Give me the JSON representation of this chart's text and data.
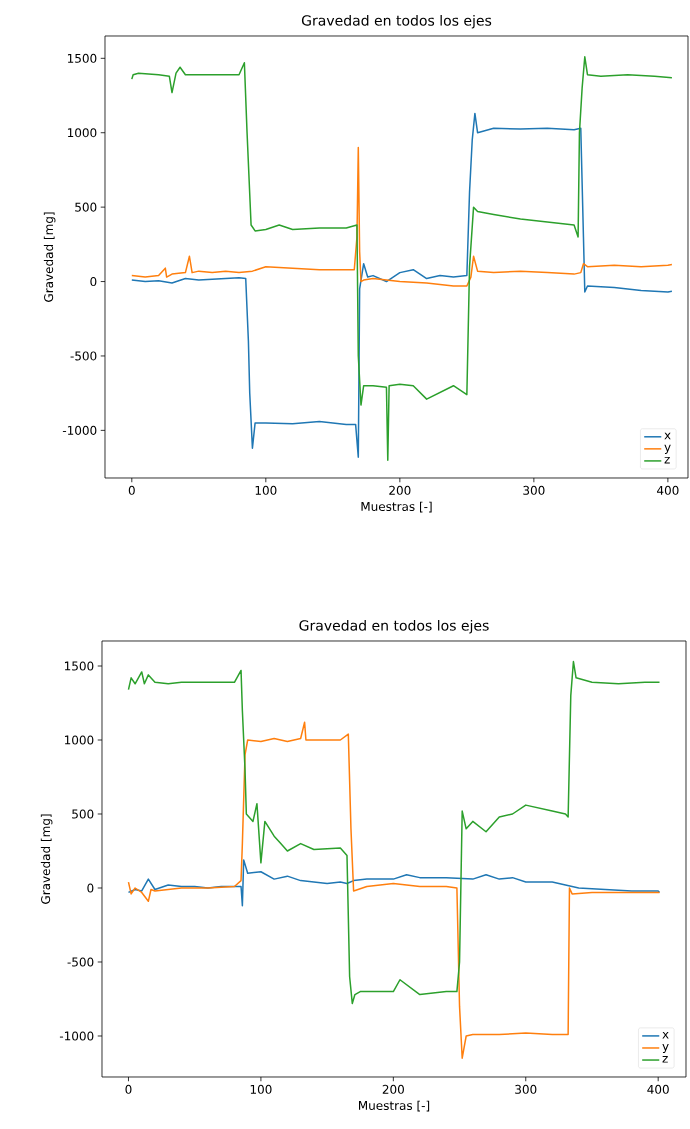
{
  "chart_data": [
    {
      "type": "line",
      "title": "Gravedad en todos los ejes",
      "xlabel": "Muestras [-]",
      "ylabel": "Gravedad [mg]",
      "xlim": [
        -20,
        415
      ],
      "ylim": [
        -1320,
        1650
      ],
      "xticks": [
        0,
        100,
        200,
        300,
        400
      ],
      "yticks": [
        -1000,
        -500,
        0,
        500,
        1000,
        1500
      ],
      "legend": "bottom right",
      "marker": "none",
      "line_style": "solid",
      "series": [
        {
          "name": "x",
          "color": "#1f77b4",
          "x": [
            0,
            10,
            20,
            30,
            40,
            50,
            60,
            70,
            80,
            85,
            87,
            88,
            90,
            92,
            100,
            120,
            140,
            160,
            167,
            169,
            170,
            173,
            176,
            180,
            190,
            200,
            210,
            220,
            230,
            240,
            250,
            252,
            254,
            256,
            258,
            270,
            290,
            310,
            330,
            335,
            337,
            338,
            340,
            360,
            380,
            400,
            403
          ],
          "values": [
            10,
            0,
            5,
            -10,
            20,
            10,
            15,
            20,
            25,
            20,
            -400,
            -750,
            -1120,
            -950,
            -950,
            -955,
            -940,
            -960,
            -960,
            -1180,
            -50,
            120,
            30,
            40,
            0,
            60,
            80,
            20,
            40,
            30,
            40,
            600,
            950,
            1130,
            1000,
            1030,
            1025,
            1030,
            1020,
            1030,
            300,
            -70,
            -30,
            -40,
            -60,
            -70,
            -65
          ]
        },
        {
          "name": "y",
          "color": "#ff7f0e",
          "x": [
            0,
            10,
            20,
            25,
            26,
            30,
            40,
            43,
            45,
            50,
            60,
            70,
            80,
            90,
            100,
            120,
            140,
            160,
            166,
            168,
            169,
            170,
            171,
            173,
            180,
            200,
            220,
            240,
            250,
            253,
            255,
            258,
            270,
            290,
            310,
            330,
            335,
            337,
            340,
            360,
            380,
            400,
            403
          ],
          "values": [
            40,
            30,
            40,
            90,
            30,
            50,
            60,
            170,
            60,
            70,
            60,
            70,
            60,
            70,
            100,
            90,
            80,
            80,
            80,
            300,
            900,
            200,
            0,
            10,
            20,
            0,
            -10,
            -30,
            -30,
            30,
            170,
            70,
            60,
            70,
            60,
            50,
            60,
            120,
            100,
            110,
            100,
            110,
            115
          ]
        },
        {
          "name": "z",
          "color": "#2ca02c",
          "x": [
            0,
            1,
            5,
            20,
            28,
            30,
            33,
            36,
            40,
            60,
            80,
            84,
            86,
            89,
            92,
            100,
            110,
            120,
            140,
            160,
            168,
            169,
            171,
            173,
            175,
            180,
            190,
            191,
            192,
            200,
            210,
            220,
            240,
            250,
            252,
            255,
            258,
            270,
            290,
            310,
            330,
            333,
            334,
            336,
            338,
            340,
            350,
            370,
            390,
            403
          ],
          "values": [
            1360,
            1390,
            1400,
            1390,
            1380,
            1270,
            1400,
            1440,
            1390,
            1390,
            1390,
            1470,
            1000,
            380,
            340,
            350,
            380,
            350,
            360,
            360,
            380,
            -500,
            -830,
            -700,
            -700,
            -700,
            -710,
            -1200,
            -700,
            -690,
            -700,
            -790,
            -700,
            -760,
            100,
            500,
            470,
            450,
            420,
            400,
            380,
            300,
            1000,
            1300,
            1510,
            1390,
            1380,
            1390,
            1380,
            1370
          ]
        }
      ]
    },
    {
      "type": "line",
      "title": "Gravedad en todos los ejes",
      "xlabel": "Muestras [-]",
      "ylabel": "Gravedad [mg]",
      "xlim": [
        -20,
        421
      ],
      "ylim": [
        -1277,
        1669
      ],
      "xticks": [
        0,
        100,
        200,
        300,
        400
      ],
      "yticks": [
        -1000,
        -500,
        0,
        500,
        1000,
        1500
      ],
      "legend": "bottom right",
      "marker": "none",
      "line_style": "solid",
      "series": [
        {
          "name": "x",
          "color": "#1f77b4",
          "x": [
            0,
            5,
            10,
            15,
            20,
            30,
            40,
            50,
            60,
            70,
            80,
            85,
            86,
            87,
            90,
            100,
            110,
            120,
            130,
            140,
            150,
            160,
            165,
            170,
            180,
            200,
            210,
            220,
            240,
            260,
            270,
            280,
            290,
            300,
            320,
            330,
            340,
            360,
            380,
            400,
            401
          ],
          "values": [
            -30,
            -10,
            -20,
            60,
            -10,
            20,
            10,
            10,
            0,
            10,
            10,
            10,
            -120,
            190,
            100,
            110,
            60,
            80,
            50,
            40,
            30,
            40,
            30,
            50,
            60,
            60,
            90,
            70,
            70,
            60,
            90,
            60,
            70,
            40,
            40,
            20,
            0,
            -10,
            -20,
            -20,
            -30
          ]
        },
        {
          "name": "y",
          "color": "#ff7f0e",
          "x": [
            0,
            2,
            5,
            10,
            15,
            17,
            20,
            30,
            40,
            60,
            80,
            85,
            86,
            88,
            90,
            100,
            110,
            120,
            130,
            133,
            134,
            140,
            160,
            166,
            168,
            170,
            180,
            200,
            220,
            240,
            248,
            250,
            252,
            255,
            260,
            280,
            300,
            320,
            330,
            332,
            333,
            335,
            350,
            380,
            401
          ],
          "values": [
            40,
            -40,
            0,
            -30,
            -90,
            -10,
            -20,
            -10,
            0,
            0,
            10,
            50,
            300,
            900,
            1000,
            990,
            1010,
            990,
            1010,
            1120,
            1000,
            1000,
            1000,
            1040,
            400,
            -20,
            10,
            30,
            10,
            10,
            0,
            -800,
            -1150,
            -1000,
            -990,
            -990,
            -980,
            -990,
            -990,
            -990,
            0,
            -40,
            -30,
            -30,
            -30
          ]
        },
        {
          "name": "z",
          "color": "#2ca02c",
          "x": [
            0,
            2,
            5,
            10,
            12,
            15,
            20,
            30,
            40,
            60,
            80,
            85,
            86,
            88,
            89,
            91,
            94,
            97,
            100,
            103,
            110,
            115,
            120,
            130,
            140,
            160,
            165,
            167,
            169,
            171,
            175,
            200,
            205,
            220,
            240,
            248,
            250,
            252,
            255,
            260,
            270,
            280,
            290,
            300,
            320,
            330,
            332,
            334,
            336,
            338,
            350,
            370,
            390,
            401
          ],
          "values": [
            1340,
            1420,
            1380,
            1460,
            1380,
            1440,
            1390,
            1380,
            1390,
            1390,
            1390,
            1470,
            1200,
            800,
            500,
            480,
            450,
            570,
            170,
            450,
            350,
            300,
            250,
            300,
            260,
            270,
            220,
            -600,
            -780,
            -720,
            -700,
            -700,
            -620,
            -720,
            -700,
            -700,
            -500,
            520,
            400,
            450,
            380,
            480,
            500,
            560,
            520,
            500,
            480,
            1300,
            1530,
            1420,
            1390,
            1380,
            1390,
            1390
          ]
        }
      ]
    }
  ]
}
